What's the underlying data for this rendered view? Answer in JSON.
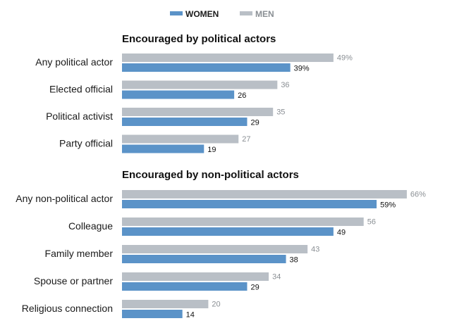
{
  "legend": {
    "women_label": "WOMEN",
    "men_label": "MEN"
  },
  "colors": {
    "women": "#5b93c8",
    "men": "#b9bfc6",
    "women_text": "#111111",
    "men_text": "#8a8f94"
  },
  "chart_data": {
    "type": "bar",
    "orientation": "horizontal",
    "xlim": [
      0,
      70
    ],
    "series_names": [
      "WOMEN",
      "MEN"
    ],
    "groups": [
      {
        "title": "Encouraged by political actors",
        "categories": [
          "Any political actor",
          "Elected official",
          "Political activist",
          "Party official"
        ],
        "men": [
          49,
          36,
          35,
          27
        ],
        "women": [
          39,
          26,
          29,
          19
        ],
        "men_labels": [
          "49%",
          "36",
          "35",
          "27"
        ],
        "women_labels": [
          "39%",
          "26",
          "29",
          "19"
        ]
      },
      {
        "title": "Encouraged by non-political actors",
        "categories": [
          "Any non-political actor",
          "Colleague",
          "Family member",
          "Spouse or partner",
          "Religious connection"
        ],
        "men": [
          66,
          56,
          43,
          34,
          20
        ],
        "women": [
          59,
          49,
          38,
          29,
          14
        ],
        "men_labels": [
          "66%",
          "56",
          "43",
          "34",
          "20"
        ],
        "women_labels": [
          "59%",
          "49",
          "38",
          "29",
          "14"
        ]
      }
    ]
  }
}
